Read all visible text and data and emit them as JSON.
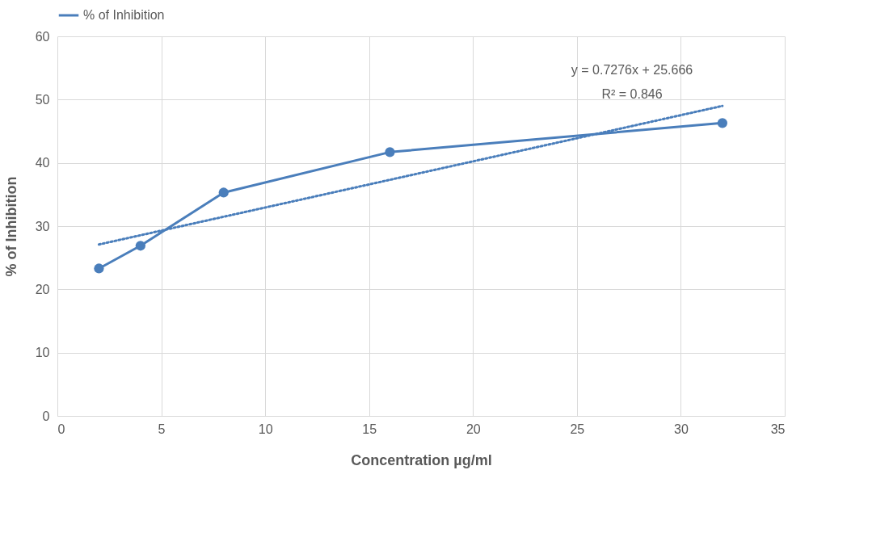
{
  "chart_data": {
    "type": "line",
    "xlabel": "Concentration µg/ml",
    "ylabel": "% of  Inhibition",
    "xlim": [
      0,
      35
    ],
    "xticks": [
      0,
      5,
      10,
      15,
      20,
      25,
      30,
      35
    ],
    "ylim": [
      0,
      60
    ],
    "yticks": [
      0,
      10,
      20,
      30,
      40,
      50,
      60
    ],
    "grid": true,
    "legend": "top",
    "series": [
      {
        "name": "% of Inhibition",
        "color": "#4a7ebb",
        "marker": "circle",
        "line_style": "solid",
        "x": [
          2,
          4,
          8,
          16,
          32
        ],
        "values": [
          23.3,
          26.9,
          35.3,
          41.7,
          46.3
        ]
      },
      {
        "color": "#4a7ebb",
        "marker": "none",
        "line_style": "dotted",
        "x": [
          2,
          32
        ],
        "values": [
          27.1,
          49.0
        ]
      }
    ],
    "annotations": [
      "y = 0.7276x + 25.666",
      "R² = 0.846"
    ]
  }
}
